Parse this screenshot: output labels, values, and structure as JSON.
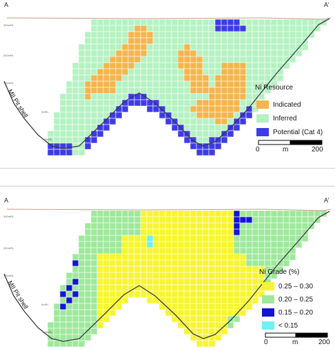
{
  "sections": [
    {
      "id": "resource",
      "label_start": "A",
      "label_end": "A’",
      "pit_label": "MII Pit shell",
      "elevation_labels": [
        "300mRL",
        "200mRL",
        "100mRL",
        "0mRL",
        "-100mRL"
      ],
      "legend_title": "Ni Resource",
      "legend_items": [
        {
          "label": "Indicated",
          "color": "#f5b54c"
        },
        {
          "label": "Inferred",
          "color": "#b5f2c2"
        },
        {
          "label": "Potential (Cat 4)",
          "color": "#3d3be6"
        }
      ],
      "scale": {
        "start": "0",
        "unit": "m",
        "end": "200"
      }
    },
    {
      "id": "grade",
      "label_start": "A",
      "label_end": "A’",
      "pit_label": "MII Pit shell",
      "elevation_labels": [
        "300mRL",
        "200mRL",
        "100mRL",
        "0mRL",
        "-100mRL"
      ],
      "legend_title": "Ni Grade (%)",
      "legend_items": [
        {
          "label": "0.25 – 0.30",
          "color": "#f8f52e"
        },
        {
          "label": "0.20 – 0.25",
          "color": "#9ee89b"
        },
        {
          "label": "0.15 – 0.20",
          "color": "#1414d8"
        },
        {
          "label": "< 0.15",
          "color": "#6ff0f4"
        }
      ],
      "scale": {
        "start": "0",
        "unit": "m",
        "end": "200"
      }
    }
  ],
  "colors": {
    "topography": "#c89a86",
    "pit_shell": "#333a3f",
    "grid_line": "#ffffff"
  }
}
